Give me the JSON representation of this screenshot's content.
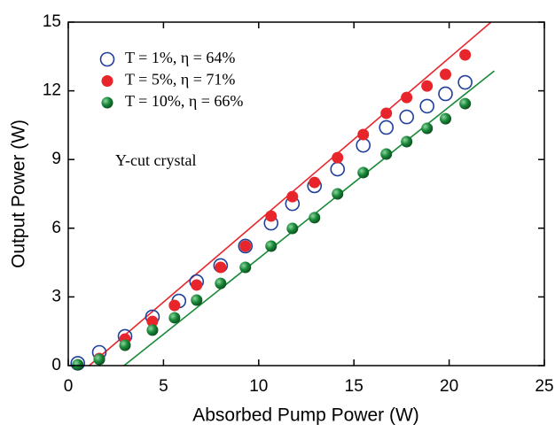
{
  "chart_data": {
    "type": "scatter",
    "xlabel": "Absorbed Pump Power (W)",
    "ylabel": "Output Power (W)",
    "annotation": "Y-cut crystal",
    "xlim": [
      0,
      25
    ],
    "xticks": [
      0,
      5,
      10,
      15,
      20,
      25
    ],
    "ylim": [
      0,
      15
    ],
    "yticks": [
      0,
      3,
      6,
      9,
      12,
      15
    ],
    "series": [
      {
        "name": "T = 1%, η = 64%",
        "color": "#1f3f9a",
        "filled": false,
        "x": [
          0.5,
          1.63,
          2.98,
          4.42,
          5.81,
          6.74,
          8.0,
          9.3,
          10.65,
          11.77,
          12.93,
          14.14,
          15.49,
          16.7,
          17.77,
          18.84,
          19.81,
          20.84
        ],
        "values": [
          0.1,
          0.58,
          1.28,
          2.13,
          2.82,
          3.67,
          4.37,
          5.22,
          6.22,
          7.07,
          7.85,
          8.58,
          9.62,
          10.4,
          10.86,
          11.33,
          11.87,
          12.37
        ]
      },
      {
        "name": "T = 5%, η = 71%",
        "color": "#e8252b",
        "filled": true,
        "x": [
          1.63,
          2.98,
          4.42,
          5.58,
          6.74,
          8.0,
          9.3,
          10.65,
          11.77,
          12.93,
          14.14,
          15.49,
          16.7,
          17.77,
          18.84,
          19.81,
          20.84
        ],
        "values": [
          0.31,
          1.16,
          1.93,
          2.63,
          3.52,
          4.29,
          5.22,
          6.53,
          7.38,
          8.0,
          9.08,
          10.09,
          11.02,
          11.71,
          12.21,
          12.72,
          13.57
        ]
      },
      {
        "name": "T = 10%, η = 66%",
        "color": "#1a8a3a",
        "filled": true,
        "x": [
          0.5,
          1.63,
          2.98,
          4.42,
          5.58,
          6.74,
          8.0,
          9.3,
          10.65,
          11.77,
          12.93,
          14.14,
          15.49,
          16.7,
          17.77,
          18.84,
          19.81,
          20.84
        ],
        "values": [
          0.04,
          0.27,
          0.89,
          1.55,
          2.09,
          2.86,
          3.59,
          4.29,
          5.22,
          5.99,
          6.46,
          7.5,
          8.43,
          9.24,
          9.78,
          10.36,
          10.78,
          11.44
        ]
      }
    ],
    "fits": [
      {
        "color": "#e8252b",
        "x": [
          1.1,
          22.2
        ],
        "values": [
          0,
          15
        ]
      },
      {
        "color": "#1a8a3a",
        "x": [
          2.93,
          22.37
        ],
        "values": [
          0,
          12.87
        ]
      }
    ]
  }
}
